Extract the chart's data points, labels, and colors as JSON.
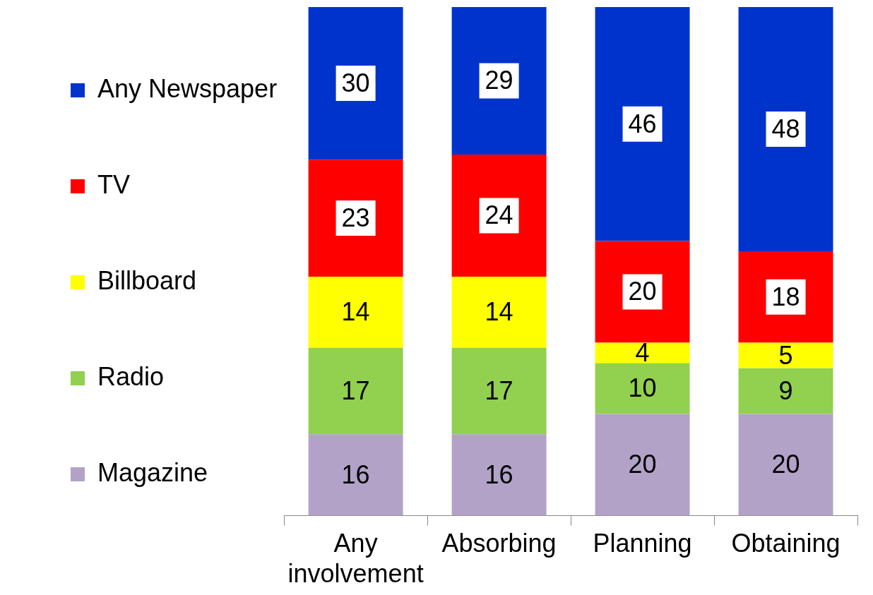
{
  "chart_data": {
    "type": "bar",
    "stacked": true,
    "categories": [
      "Any involvement",
      "Absorbing",
      "Planning",
      "Obtaining"
    ],
    "series": [
      {
        "name": "Magazine",
        "color": "#b3a2c7",
        "values": [
          16,
          16,
          20,
          20
        ]
      },
      {
        "name": "Radio",
        "color": "#92d050",
        "values": [
          17,
          17,
          10,
          9
        ]
      },
      {
        "name": "Billboard",
        "color": "#ffff00",
        "values": [
          14,
          14,
          4,
          5
        ]
      },
      {
        "name": "TV",
        "color": "#ff0000",
        "values": [
          23,
          24,
          20,
          18
        ]
      },
      {
        "name": "Any Newspaper",
        "color": "#0033cc",
        "values": [
          30,
          29,
          46,
          48
        ]
      }
    ],
    "ylim": [
      0,
      100
    ],
    "tick_labels": "x",
    "data_labels": true,
    "legend": "left",
    "grid": false
  }
}
